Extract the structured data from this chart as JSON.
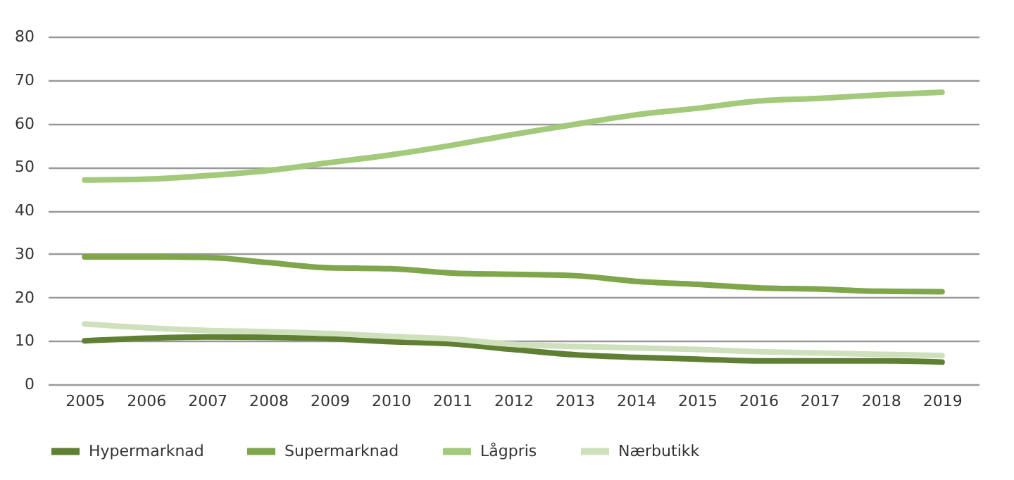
{
  "chart_data": {
    "type": "line",
    "categories": [
      "2005",
      "2006",
      "2007",
      "2008",
      "2009",
      "2010",
      "2011",
      "2012",
      "2013",
      "2014",
      "2015",
      "2016",
      "2017",
      "2018",
      "2019"
    ],
    "series": [
      {
        "name": "Hypermarknad",
        "color": "#5f7f33",
        "values": [
          10,
          10.6,
          10.9,
          10.8,
          10.5,
          9.8,
          9.3,
          8,
          6.8,
          6.2,
          5.8,
          5.4,
          5.4,
          5.4,
          5.1
        ]
      },
      {
        "name": "Supermarknad",
        "color": "#7fa64a",
        "values": [
          29.3,
          29.3,
          29.2,
          28,
          26.8,
          26.6,
          25.6,
          25.3,
          25,
          23.7,
          23,
          22.2,
          21.9,
          21.4,
          21.3
        ]
      },
      {
        "name": "Lågpris",
        "color": "#a3c97a",
        "values": [
          47,
          47.2,
          48,
          49.2,
          51,
          52.8,
          55,
          57.5,
          59.8,
          62,
          63.5,
          65.2,
          65.8,
          66.6,
          67.2
        ]
      },
      {
        "name": "Nærbutikk",
        "color": "#cfe0bc",
        "values": [
          13.9,
          13,
          12.4,
          12.1,
          11.7,
          11,
          10.4,
          9.2,
          8.7,
          8.4,
          8,
          7.5,
          7.2,
          6.9,
          6.6
        ]
      }
    ],
    "ylim": [
      0,
      80
    ],
    "yticks": [
      0,
      10,
      20,
      30,
      40,
      50,
      60,
      70,
      80
    ],
    "grid": "y",
    "legend": "bottom",
    "marker": "none",
    "line_style": "solid"
  }
}
